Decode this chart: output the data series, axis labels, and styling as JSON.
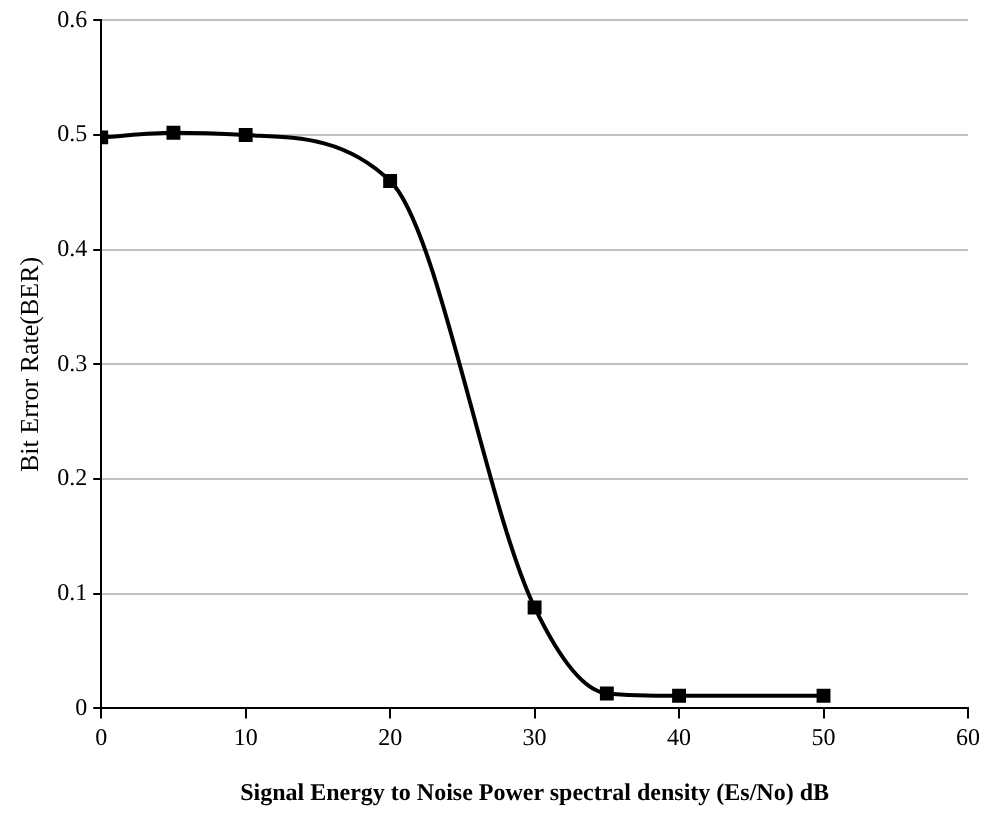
{
  "chart_data": {
    "type": "line",
    "xlabel": "Signal Energy to Noise Power spectral density (Es/No) dB",
    "ylabel": "Bit Error Rate(BER)",
    "x": [
      0,
      5,
      10,
      20,
      30,
      35,
      40,
      50
    ],
    "series": [
      {
        "color": "#000000",
        "values": [
          0.498,
          0.502,
          0.5,
          0.46,
          0.088,
          0.013,
          0.011,
          0.011
        ]
      }
    ],
    "xlim": [
      0,
      60
    ],
    "xticks": [
      0,
      10,
      20,
      30,
      40,
      50,
      60
    ],
    "ylim": [
      0,
      0.6
    ],
    "yticks": [
      0,
      0.1,
      0.2,
      0.3,
      0.4,
      0.5,
      0.6
    ],
    "grid": "y",
    "legend": false,
    "marker": "square",
    "line_style": "solid"
  }
}
